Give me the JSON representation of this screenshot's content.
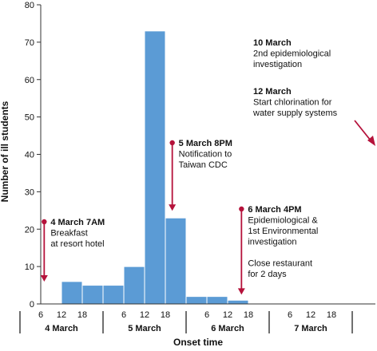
{
  "chart_data": {
    "type": "bar",
    "xlabel": "Onset time",
    "ylabel": "Number of ill students",
    "ylim": [
      0,
      80
    ],
    "yticks": [
      0,
      10,
      20,
      30,
      40,
      50,
      60,
      70,
      80
    ],
    "grid": false,
    "bar_color": "#5b9bd5",
    "annotation_color": "#b5123b",
    "bins": [
      {
        "day": "4 March",
        "start_hour": 6,
        "end_hour": 12,
        "value": 0
      },
      {
        "day": "4 March",
        "start_hour": 12,
        "end_hour": 18,
        "value": 6
      },
      {
        "day": "4 March",
        "start_hour": 18,
        "end_hour": 24,
        "value": 5
      },
      {
        "day": "5 March",
        "start_hour": 0,
        "end_hour": 6,
        "value": 5
      },
      {
        "day": "5 March",
        "start_hour": 6,
        "end_hour": 12,
        "value": 10
      },
      {
        "day": "5 March",
        "start_hour": 12,
        "end_hour": 18,
        "value": 73
      },
      {
        "day": "5 March",
        "start_hour": 18,
        "end_hour": 24,
        "value": 23
      },
      {
        "day": "6 March",
        "start_hour": 0,
        "end_hour": 6,
        "value": 2
      },
      {
        "day": "6 March",
        "start_hour": 6,
        "end_hour": 12,
        "value": 2
      },
      {
        "day": "6 March",
        "start_hour": 12,
        "end_hour": 18,
        "value": 1
      }
    ],
    "hour_ticks": [
      "6",
      "12",
      "18"
    ],
    "days": [
      "4 March",
      "5 March",
      "6 March",
      "7 March"
    ],
    "annotations": [
      {
        "id": "breakfast",
        "day_index": 0,
        "hour": 7,
        "arrow_to_value": 0,
        "lines": [
          "4 March 7AM",
          "Breakfast",
          "at resort hotel"
        ]
      },
      {
        "id": "notification",
        "day_index": 1,
        "hour": 20,
        "arrow_to_value": 23,
        "lines": [
          "5 March 8PM",
          "Notification to",
          "Taiwan CDC"
        ]
      },
      {
        "id": "investigation",
        "day_index": 2,
        "hour": 16,
        "arrow_to_value": 1,
        "lines": [
          "6 March 4PM",
          "Epidemiological &",
          "1st Environmental",
          "investigation",
          "",
          "Close restaurant",
          "for 2 days"
        ]
      },
      {
        "id": "second",
        "lines": [
          "10 March",
          "2nd epidemiological",
          "investigation"
        ]
      },
      {
        "id": "chlorination",
        "lines": [
          "12 March",
          "Start chlorination for",
          "water supply systems"
        ]
      }
    ]
  }
}
